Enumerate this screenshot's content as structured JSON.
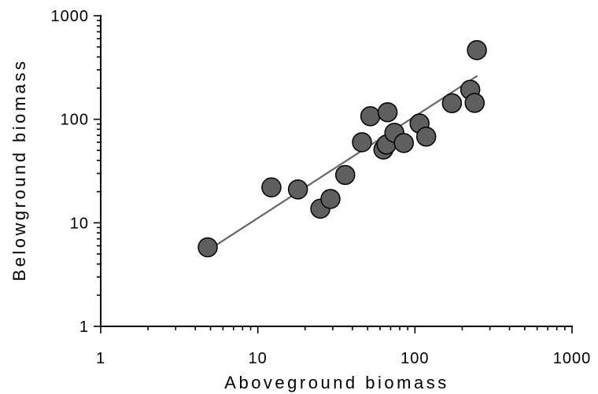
{
  "chart_data": {
    "type": "scatter",
    "title": "",
    "xlabel": "Aboveground biomass",
    "ylabel": "Belowground biomass",
    "xscale": "log",
    "yscale": "log",
    "xlim": [
      1,
      1000
    ],
    "ylim": [
      1,
      1000
    ],
    "xticks": [
      "1",
      "10",
      "100",
      "1000"
    ],
    "yticks": [
      "1",
      "10",
      "100",
      "1000"
    ],
    "grid": false,
    "legend": "none",
    "colors": {
      "marker": "#5f5f5f",
      "marker_edge": "#000000",
      "fit_line": "#666666"
    },
    "points": [
      {
        "x": 4.8,
        "y": 5.8
      },
      {
        "x": 12.2,
        "y": 22
      },
      {
        "x": 18,
        "y": 21
      },
      {
        "x": 25,
        "y": 13.7
      },
      {
        "x": 29,
        "y": 17
      },
      {
        "x": 36,
        "y": 29
      },
      {
        "x": 46,
        "y": 60
      },
      {
        "x": 52,
        "y": 107
      },
      {
        "x": 63,
        "y": 51
      },
      {
        "x": 66,
        "y": 57
      },
      {
        "x": 67,
        "y": 117
      },
      {
        "x": 74,
        "y": 74
      },
      {
        "x": 85,
        "y": 59
      },
      {
        "x": 107,
        "y": 91
      },
      {
        "x": 118,
        "y": 68
      },
      {
        "x": 172,
        "y": 143
      },
      {
        "x": 225,
        "y": 193
      },
      {
        "x": 240,
        "y": 144
      },
      {
        "x": 248,
        "y": 465
      }
    ],
    "fit_line": {
      "x": [
        4.8,
        250
      ],
      "y": [
        5.4,
        263
      ]
    }
  }
}
